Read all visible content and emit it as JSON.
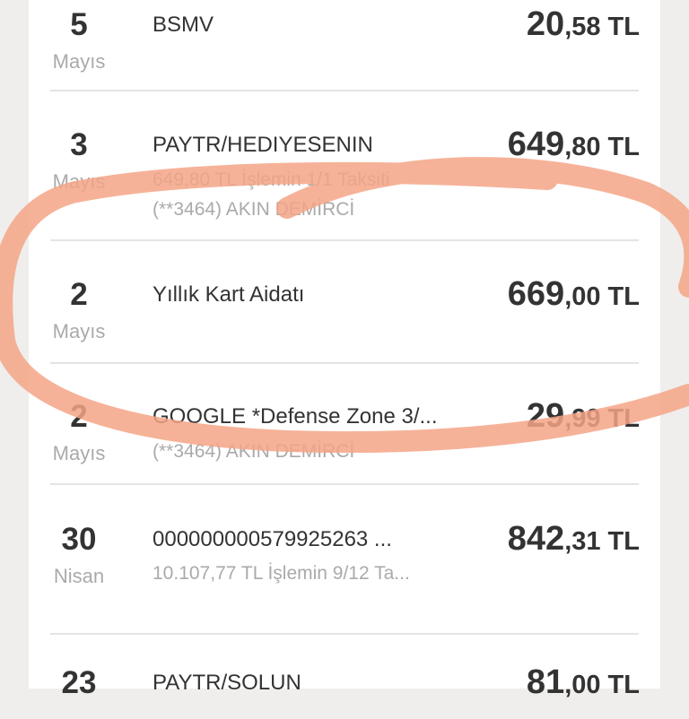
{
  "transactions": [
    {
      "day": "5",
      "month": "Mayıs",
      "title": "BSMV",
      "subs": [],
      "amount_int": "20",
      "amount_dec": ",58 TL"
    },
    {
      "day": "3",
      "month": "Mayıs",
      "title": "PAYTR/HEDIYESENIN",
      "subs": [
        "649,80 TL İşlemin 1/1 Taksiti",
        "(**3464) AKIN DEMİRCİ"
      ],
      "amount_int": "649",
      "amount_dec": ",80 TL"
    },
    {
      "day": "2",
      "month": "Mayıs",
      "title": "Yıllık Kart Aidatı",
      "subs": [],
      "amount_int": "669",
      "amount_dec": ",00 TL"
    },
    {
      "day": "2",
      "month": "Mayıs",
      "title": "GOOGLE *Defense Zone 3/...",
      "subs": [
        "(**3464) AKIN DEMİRCİ"
      ],
      "amount_int": "29",
      "amount_dec": ",99 TL"
    },
    {
      "day": "30",
      "month": "Nisan",
      "title": "000000000579925263 ...",
      "subs": [
        "10.107,77 TL İşlemin 9/12 Ta..."
      ],
      "amount_int": "842",
      "amount_dec": ",31 TL"
    },
    {
      "day": "23",
      "month": "",
      "title": "PAYTR/SOLUN",
      "subs": [],
      "amount_int": "81",
      "amount_dec": ",00 TL"
    }
  ],
  "annotation_color": "#f5a486"
}
